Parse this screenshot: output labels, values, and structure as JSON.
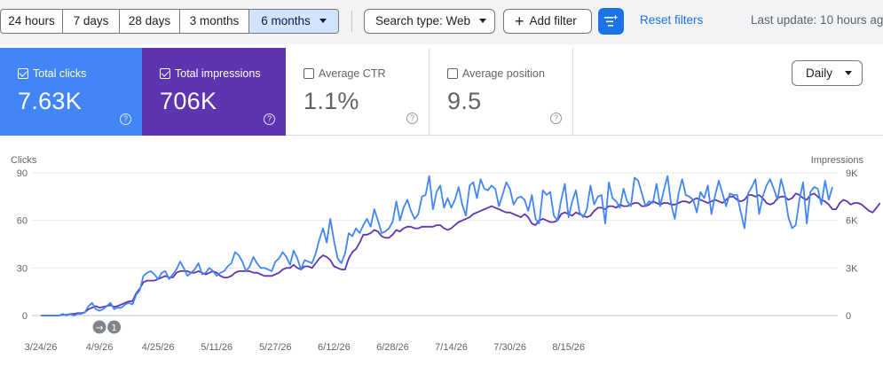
{
  "toolbar": {
    "ranges": [
      "24 hours",
      "7 days",
      "28 days",
      "3 months",
      "6 months"
    ],
    "active_range": "6 months",
    "search_type": "Search type: Web",
    "add_filter": "Add filter",
    "reset_filters": "Reset filters",
    "last_update": "Last update: 10 hours ag"
  },
  "metrics": {
    "clicks": {
      "label": "Total clicks",
      "value": "7.63K",
      "checked": true,
      "color": "#4285f4"
    },
    "impressions": {
      "label": "Total impressions",
      "value": "706K",
      "checked": true,
      "color": "#5e35b1"
    },
    "ctr": {
      "label": "Average CTR",
      "value": "1.1%",
      "checked": false
    },
    "position": {
      "label": "Average position",
      "value": "9.5",
      "checked": false
    }
  },
  "granularity": "Daily",
  "chart_data": {
    "type": "line",
    "ylabel_left": "Clicks",
    "ylabel_right": "Impressions",
    "y_left_ticks": [
      "0",
      "30",
      "60",
      "90"
    ],
    "y_left_lim": [
      0,
      90
    ],
    "y_right_ticks": [
      "0",
      "3K",
      "6K",
      "9K"
    ],
    "y_right_lim": [
      0,
      9000
    ],
    "x_tick_labels": [
      "3/24/26",
      "4/9/26",
      "4/25/26",
      "5/11/26",
      "5/27/26",
      "6/12/26",
      "6/28/26",
      "7/14/26",
      "7/30/26",
      "8/15/26"
    ],
    "start_date": "3/24/26",
    "grid": true,
    "annotations": [
      {
        "date": "4/9/26",
        "label": "→"
      },
      {
        "date": "4/13/26",
        "label": "1"
      }
    ],
    "series": [
      {
        "name": "Total clicks",
        "color": "#4285f4",
        "axis": "left",
        "values": [
          0,
          0,
          0,
          0,
          0,
          0,
          1,
          0,
          1,
          0,
          1,
          1,
          2,
          6,
          8,
          4,
          3,
          4,
          6,
          8,
          4,
          5,
          5,
          7,
          8,
          7,
          13,
          16,
          25,
          27,
          28,
          26,
          23,
          27,
          28,
          23,
          26,
          29,
          34,
          30,
          25,
          27,
          29,
          33,
          26,
          27,
          30,
          28,
          25,
          27,
          28,
          31,
          33,
          40,
          38,
          34,
          28,
          31,
          37,
          33,
          30,
          30,
          29,
          28,
          34,
          36,
          40,
          37,
          32,
          41,
          36,
          29,
          35,
          34,
          33,
          39,
          48,
          55,
          46,
          61,
          47,
          36,
          33,
          39,
          52,
          50,
          55,
          52,
          57,
          61,
          56,
          67,
          60,
          52,
          53,
          55,
          59,
          72,
          60,
          68,
          73,
          66,
          61,
          64,
          75,
          76,
          88,
          67,
          78,
          82,
          68,
          74,
          68,
          73,
          81,
          70,
          63,
          82,
          84,
          74,
          86,
          80,
          79,
          82,
          80,
          69,
          76,
          84,
          80,
          70,
          74,
          75,
          73,
          66,
          76,
          61,
          58,
          79,
          76,
          78,
          63,
          60,
          73,
          83,
          62,
          72,
          79,
          65,
          62,
          67,
          82,
          70,
          75,
          76,
          58,
          84,
          74,
          72,
          68,
          80,
          72,
          69,
          87,
          85,
          77,
          69,
          72,
          71,
          83,
          69,
          79,
          88,
          70,
          61,
          77,
          86,
          76,
          75,
          73,
          65,
          78,
          74,
          82,
          64,
          76,
          85,
          77,
          69,
          77,
          76,
          76,
          65,
          55,
          77,
          81,
          86,
          64,
          75,
          82,
          86,
          80,
          73,
          86,
          77,
          62,
          55,
          57,
          73,
          84,
          58,
          78,
          81,
          80,
          70,
          85,
          73,
          81
        ]
      },
      {
        "name": "Total impressions",
        "color": "#5e35b1",
        "axis": "right",
        "values": [
          0,
          0,
          0,
          0,
          0,
          0,
          50,
          50,
          100,
          100,
          150,
          150,
          200,
          400,
          500,
          600,
          500,
          550,
          600,
          650,
          550,
          600,
          700,
          800,
          900,
          900,
          1400,
          1700,
          2100,
          2200,
          2200,
          2200,
          2300,
          2400,
          2500,
          2400,
          2400,
          2700,
          2800,
          2800,
          2800,
          2700,
          2700,
          2800,
          2700,
          2600,
          2700,
          2800,
          2700,
          2500,
          2400,
          2400,
          2500,
          2700,
          2800,
          2800,
          2800,
          2800,
          2700,
          2700,
          2600,
          2500,
          2500,
          2500,
          2600,
          2700,
          2900,
          3000,
          3000,
          3200,
          3000,
          2900,
          3100,
          3100,
          3000,
          3300,
          3600,
          3800,
          3700,
          3500,
          3100,
          3000,
          2900,
          2900,
          3600,
          4000,
          4200,
          4600,
          5100,
          5100,
          5200,
          5400,
          5300,
          5000,
          4900,
          4900,
          5100,
          5400,
          5300,
          5500,
          5600,
          5600,
          5500,
          5500,
          5600,
          5600,
          5600,
          5600,
          5700,
          5700,
          5500,
          5400,
          5500,
          5700,
          5900,
          6000,
          6100,
          6200,
          6400,
          6500,
          6600,
          6700,
          6800,
          6900,
          6800,
          6700,
          6600,
          6500,
          6500,
          6400,
          6300,
          6200,
          6400,
          6200,
          5800,
          5700,
          6000,
          6100,
          6000,
          5900,
          5900,
          6000,
          6400,
          6500,
          6400,
          6300,
          6500,
          6400,
          6300,
          6200,
          6300,
          6600,
          6800,
          6800,
          6700,
          6900,
          6900,
          6800,
          7000,
          6900,
          6900,
          7000,
          7100,
          7100,
          6900,
          6900,
          7000,
          7200,
          7100,
          7000,
          7100,
          7100,
          7000,
          7000,
          7100,
          7200,
          7200,
          7100,
          7300,
          7400,
          7300,
          7200,
          7100,
          7200,
          7300,
          7200,
          7100,
          7300,
          7500,
          7500,
          7300,
          7200,
          7300,
          7600,
          7600,
          7500,
          7600,
          7400,
          7100,
          7000,
          7100,
          7400,
          7500,
          7500,
          7300,
          7400,
          7700,
          7600,
          7400,
          7300,
          7600,
          7700,
          7500,
          7300,
          7200,
          7000,
          6700,
          6700,
          7100,
          7300,
          7200,
          7000,
          7100,
          7100,
          7000,
          6800,
          6600,
          6500,
          6800,
          7100
        ]
      }
    ]
  }
}
